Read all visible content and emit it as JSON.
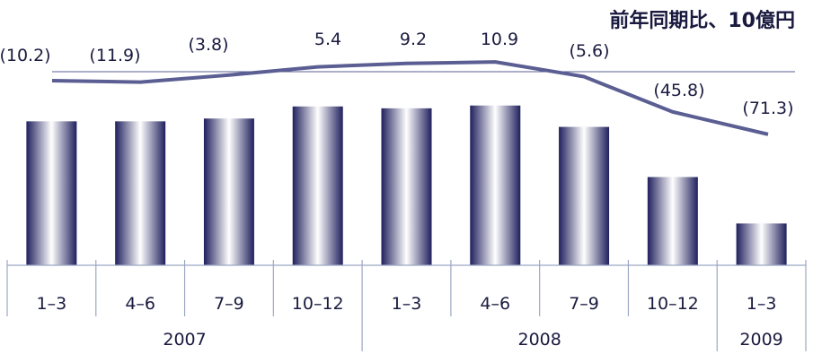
{
  "chart_data": {
    "type": "bar",
    "title": "前年同期比、10億円",
    "categories": [
      "1-3",
      "4-6",
      "7-9",
      "10-12",
      "1-3",
      "4-6",
      "7-9",
      "10-12",
      "1-3"
    ],
    "years": [
      {
        "label": "2007",
        "quarters": 4
      },
      {
        "label": "2008",
        "quarters": 4
      },
      {
        "label": "2009",
        "quarters": 1
      }
    ],
    "bars": {
      "values": [
        155,
        155,
        158,
        171,
        169,
        172,
        149,
        95,
        45
      ],
      "ylim": [
        0,
        220
      ]
    },
    "line": {
      "values": [
        -10.2,
        -11.9,
        -3.8,
        5.4,
        9.2,
        10.9,
        -5.6,
        -45.8,
        -71.3
      ],
      "labels": [
        "(10.2)",
        "(11.9)",
        "(3.8)",
        "5.4",
        "9.2",
        "10.9",
        "(5.6)",
        "(45.8)",
        "(71.3)"
      ],
      "zero_line": 0
    },
    "colors": {
      "bar_edge": "#20205e",
      "bar_center": "#ffffff",
      "line": "#5b5e92",
      "axis": "#9da7c4",
      "text": "#1a1a40"
    }
  }
}
